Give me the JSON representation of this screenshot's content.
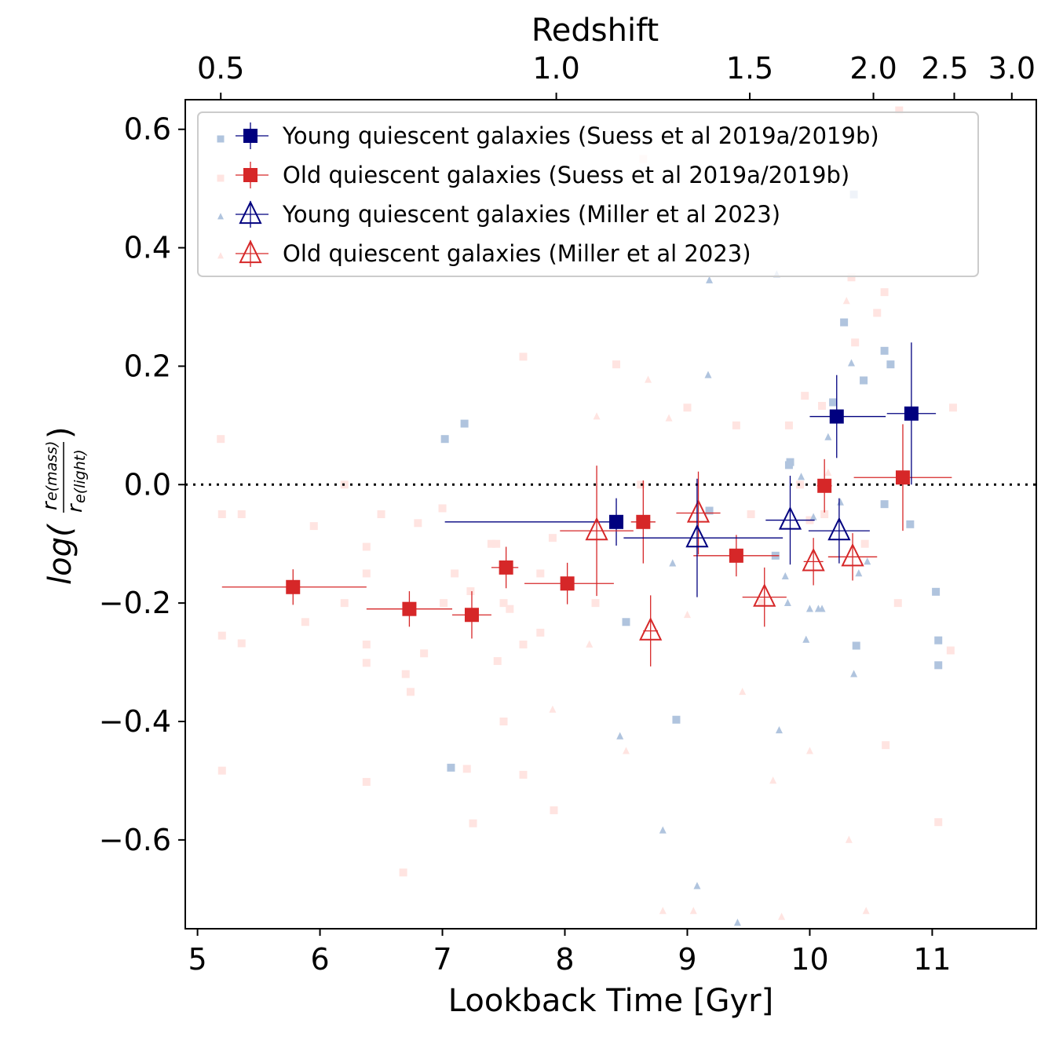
{
  "chart_data": {
    "type": "scatter",
    "xlabel": "Lookback Time [Gyr]",
    "ylabel_parts": {
      "log": "log(",
      "num": "r",
      "num_sub": "e(mass)",
      "den": "r",
      "den_sub": "e(light)",
      "close": ")"
    },
    "top_xlabel": "Redshift",
    "xlim": [
      4.9,
      11.85
    ],
    "ylim": [
      -0.75,
      0.65
    ],
    "x_ticks": [
      5,
      6,
      7,
      8,
      9,
      10,
      11
    ],
    "y_ticks": [
      0.6,
      0.4,
      0.2,
      0.0,
      -0.2,
      -0.4,
      -0.6
    ],
    "y_tick_labels": [
      "0.6",
      "0.4",
      "0.2",
      "0.0",
      "−0.2",
      "−0.4",
      "−0.6"
    ],
    "top_ticks": [
      {
        "label": "0.5",
        "lookback": 5.19
      },
      {
        "label": "1.0",
        "lookback": 7.93
      },
      {
        "label": "1.5",
        "lookback": 9.51
      },
      {
        "label": "2.0",
        "lookback": 10.52
      },
      {
        "label": "2.5",
        "lookback": 11.18
      },
      {
        "label": "3.0",
        "lookback": 11.65
      }
    ],
    "reference_line": {
      "y": 0.0,
      "style": "dotted"
    },
    "legend": {
      "placement": "top-left",
      "entries": [
        {
          "label": "Young quiescent galaxies (Suess et al 2019a/2019b)",
          "marker": "square",
          "filled": true,
          "color": "#00007f",
          "point_color": "#b0c4de"
        },
        {
          "label": "Old quiescent galaxies (Suess et al 2019a/2019b)",
          "marker": "square",
          "filled": true,
          "color": "#d62728",
          "point_color": "#ffe4e1"
        },
        {
          "label": "Young quiescent galaxies (Miller et al 2023)",
          "marker": "triangle",
          "filled": false,
          "color": "#00007f",
          "point_color": "#b0c4de"
        },
        {
          "label": "Old quiescent galaxies (Miller et al 2023)",
          "marker": "triangle",
          "filled": false,
          "color": "#d62728",
          "point_color": "#ffe4e1"
        }
      ]
    },
    "series": [
      {
        "name": "Young quiescent galaxies (Suess et al 2019a/2019b)",
        "individual": [
          [
            7.02,
            0.077
          ],
          [
            7.18,
            0.103
          ],
          [
            7.07,
            -0.478
          ],
          [
            8.5,
            -0.232
          ],
          [
            8.91,
            -0.397
          ],
          [
            9.83,
            0.033
          ],
          [
            9.84,
            0.038
          ],
          [
            10.19,
            0.139
          ],
          [
            10.28,
            0.274
          ],
          [
            10.44,
            0.176
          ],
          [
            10.61,
            0.226
          ],
          [
            10.66,
            0.203
          ],
          [
            10.61,
            -0.033
          ],
          [
            10.82,
            -0.067
          ],
          [
            11.03,
            -0.181
          ],
          [
            11.05,
            -0.263
          ],
          [
            11.05,
            -0.305
          ],
          [
            10.38,
            -0.272
          ],
          [
            9.72,
            -0.12
          ],
          [
            9.18,
            -0.044
          ],
          [
            10.36,
            0.49
          ]
        ],
        "binned": [
          {
            "x": 8.42,
            "y": -0.063,
            "xerr": [
              1.4,
              0.0
            ],
            "yerr": [
              0.04,
              0.04
            ]
          },
          {
            "x": 10.22,
            "y": 0.115,
            "xerr": [
              0.22,
              0.4
            ],
            "yerr": [
              0.07,
              0.07
            ]
          },
          {
            "x": 10.83,
            "y": 0.12,
            "xerr": [
              0.2,
              0.2
            ],
            "yerr": [
              0.12,
              0.12
            ]
          }
        ]
      },
      {
        "name": "Old quiescent galaxies (Suess et al 2019a/2019b)",
        "individual": [
          [
            5.19,
            0.077
          ],
          [
            5.2,
            -0.05
          ],
          [
            5.2,
            -0.255
          ],
          [
            5.2,
            -0.483
          ],
          [
            5.36,
            -0.05
          ],
          [
            5.36,
            -0.268
          ],
          [
            5.88,
            -0.232
          ],
          [
            6.2,
            0.0
          ],
          [
            6.38,
            -0.105
          ],
          [
            6.38,
            -0.15
          ],
          [
            6.38,
            -0.27
          ],
          [
            6.38,
            -0.301
          ],
          [
            6.38,
            -0.502
          ],
          [
            6.5,
            -0.05
          ],
          [
            6.8,
            -0.065
          ],
          [
            6.85,
            -0.285
          ],
          [
            6.74,
            -0.35
          ],
          [
            6.7,
            -0.32
          ],
          [
            6.68,
            -0.655
          ],
          [
            7.0,
            -0.04
          ],
          [
            7.2,
            -0.48
          ],
          [
            7.25,
            -0.572
          ],
          [
            7.4,
            -0.1
          ],
          [
            7.44,
            -0.1
          ],
          [
            7.5,
            -0.2
          ],
          [
            7.45,
            -0.298
          ],
          [
            7.5,
            -0.4
          ],
          [
            7.55,
            -0.21
          ],
          [
            7.66,
            0.216
          ],
          [
            7.66,
            -0.27
          ],
          [
            7.66,
            -0.49
          ],
          [
            7.8,
            -0.15
          ],
          [
            7.91,
            -0.55
          ],
          [
            7.9,
            -0.09
          ],
          [
            8.42,
            0.203
          ],
          [
            8.62,
            0.0
          ],
          [
            8.64,
            0.55
          ],
          [
            9.0,
            0.13
          ],
          [
            9.52,
            -0.05
          ],
          [
            9.83,
            0.1
          ],
          [
            9.92,
            0.0
          ],
          [
            9.96,
            0.15
          ],
          [
            10.0,
            -0.06
          ],
          [
            10.1,
            0.133
          ],
          [
            10.12,
            -0.05
          ],
          [
            10.37,
            0.24
          ],
          [
            10.55,
            0.29
          ],
          [
            10.61,
            0.325
          ],
          [
            10.62,
            -0.44
          ],
          [
            10.72,
            -0.2
          ],
          [
            11.17,
            0.13
          ],
          [
            11.15,
            -0.28
          ],
          [
            11.05,
            -0.57
          ],
          [
            10.73,
            0.632
          ],
          [
            10.34,
            0.35
          ],
          [
            9.61,
            -0.2
          ],
          [
            8.25,
            -0.2
          ],
          [
            7.23,
            -0.18
          ],
          [
            7.01,
            -0.2
          ],
          [
            6.2,
            -0.2
          ],
          [
            5.95,
            -0.07
          ],
          [
            7.8,
            -0.25
          ],
          [
            7.1,
            -0.15
          ],
          [
            10.45,
            -0.1
          ],
          [
            9.4,
            0.1
          ]
        ],
        "binned": [
          {
            "x": 5.78,
            "y": -0.173,
            "xerr": [
              0.58,
              0.6
            ],
            "yerr": [
              0.03,
              0.03
            ]
          },
          {
            "x": 6.73,
            "y": -0.21,
            "xerr": [
              0.35,
              0.35
            ],
            "yerr": [
              0.03,
              0.03
            ]
          },
          {
            "x": 7.24,
            "y": -0.22,
            "xerr": [
              0.16,
              0.16
            ],
            "yerr": [
              0.04,
              0.04
            ]
          },
          {
            "x": 7.52,
            "y": -0.14,
            "xerr": [
              0.12,
              0.1
            ],
            "yerr": [
              0.035,
              0.035
            ]
          },
          {
            "x": 8.02,
            "y": -0.167,
            "xerr": [
              0.35,
              0.38
            ],
            "yerr": [
              0.035,
              0.035
            ]
          },
          {
            "x": 8.64,
            "y": -0.063,
            "xerr": [
              0.1,
              0.1
            ],
            "yerr": [
              0.07,
              0.07
            ]
          },
          {
            "x": 9.4,
            "y": -0.12,
            "xerr": [
              0.35,
              0.35
            ],
            "yerr": [
              0.035,
              0.035
            ]
          },
          {
            "x": 10.12,
            "y": -0.002,
            "xerr": [
              0.06,
              0.06
            ],
            "yerr": [
              0.045,
              0.045
            ]
          },
          {
            "x": 10.76,
            "y": 0.012,
            "xerr": [
              0.4,
              0.4
            ],
            "yerr": [
              0.09,
              0.09
            ]
          }
        ]
      },
      {
        "name": "Young quiescent galaxies (Miller et al 2023)",
        "individual": [
          [
            8.45,
            -0.425
          ],
          [
            8.8,
            -0.584
          ],
          [
            8.88,
            -0.133
          ],
          [
            9.08,
            -0.678
          ],
          [
            9.17,
            0.185
          ],
          [
            9.18,
            0.345
          ],
          [
            9.41,
            -0.74
          ],
          [
            9.73,
            0.355
          ],
          [
            9.75,
            -0.415
          ],
          [
            9.8,
            -0.155
          ],
          [
            9.82,
            -0.2
          ],
          [
            9.93,
            0.013
          ],
          [
            9.97,
            -0.262
          ],
          [
            10.0,
            -0.21
          ],
          [
            10.03,
            -0.055
          ],
          [
            10.07,
            -0.21
          ],
          [
            10.1,
            -0.21
          ],
          [
            10.15,
            0.08
          ],
          [
            10.34,
            0.205
          ],
          [
            10.36,
            -0.32
          ],
          [
            10.4,
            -0.15
          ],
          [
            10.47,
            -0.13
          ],
          [
            10.25,
            -0.03
          ]
        ],
        "binned": [
          {
            "x": 9.08,
            "y": -0.09,
            "xerr": [
              0.6,
              0.7
            ],
            "yerr": [
              0.1,
              0.1
            ]
          },
          {
            "x": 9.84,
            "y": -0.06,
            "xerr": [
              0.2,
              0.2
            ],
            "yerr": [
              0.075,
              0.075
            ]
          },
          {
            "x": 10.24,
            "y": -0.078,
            "xerr": [
              0.25,
              0.25
            ],
            "yerr": [
              0.055,
              0.055
            ]
          }
        ]
      },
      {
        "name": "Old quiescent galaxies (Miller et al 2023)",
        "individual": [
          [
            8.26,
            0.115
          ],
          [
            8.5,
            -0.45
          ],
          [
            8.68,
            0.177
          ],
          [
            8.8,
            -0.72
          ],
          [
            8.85,
            0.112
          ],
          [
            9.0,
            -0.22
          ],
          [
            9.45,
            -0.35
          ],
          [
            9.7,
            -0.5
          ],
          [
            9.77,
            -0.73
          ],
          [
            10.0,
            -0.45
          ],
          [
            10.3,
            0.31
          ],
          [
            10.32,
            -0.6
          ],
          [
            10.46,
            -0.72
          ],
          [
            8.2,
            -0.27
          ],
          [
            7.9,
            -0.38
          ],
          [
            10.15,
            0.02
          ],
          [
            9.05,
            -0.72
          ]
        ],
        "binned": [
          {
            "x": 8.26,
            "y": -0.078,
            "xerr": [
              0.3,
              0.3
            ],
            "yerr": [
              0.11,
              0.11
            ]
          },
          {
            "x": 8.7,
            "y": -0.247,
            "xerr": [
              0.06,
              0.06
            ],
            "yerr": [
              0.06,
              0.06
            ]
          },
          {
            "x": 9.09,
            "y": -0.048,
            "xerr": [
              0.18,
              0.18
            ],
            "yerr": [
              0.07,
              0.07
            ]
          },
          {
            "x": 9.63,
            "y": -0.19,
            "xerr": [
              0.18,
              0.18
            ],
            "yerr": [
              0.05,
              0.05
            ]
          },
          {
            "x": 10.03,
            "y": -0.13,
            "xerr": [
              0.08,
              0.08
            ],
            "yerr": [
              0.04,
              0.04
            ]
          },
          {
            "x": 10.35,
            "y": -0.122,
            "xerr": [
              0.2,
              0.2
            ],
            "yerr": [
              0.04,
              0.04
            ]
          }
        ]
      }
    ]
  }
}
